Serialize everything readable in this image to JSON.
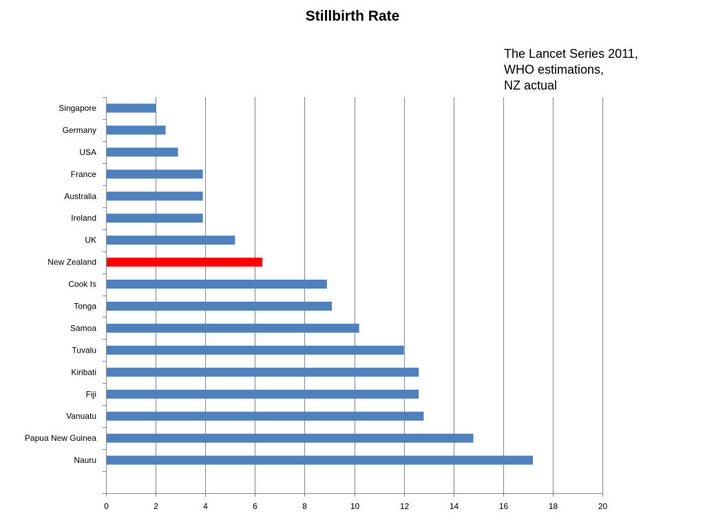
{
  "chart_data": {
    "type": "bar",
    "orientation": "horizontal",
    "title": "Stillbirth Rate",
    "annotation": [
      "The Lancet Series 2011,",
      "WHO estimations,",
      "NZ actual"
    ],
    "categories": [
      "Singapore",
      "Germany",
      "USA",
      "France",
      "Australia",
      "Ireland",
      "UK",
      "New Zealand",
      "Cook Is",
      "Tonga",
      "Samoa",
      "Tuvalu",
      "Kiribati",
      "Fiji",
      "Vanuatu",
      "Papua New Guinea",
      "Nauru"
    ],
    "values": [
      2.0,
      2.4,
      2.9,
      3.9,
      3.9,
      3.9,
      5.2,
      6.3,
      8.9,
      9.1,
      10.2,
      12.0,
      12.6,
      12.6,
      12.8,
      14.8,
      17.2
    ],
    "bar_colors": [
      "#4f81bd",
      "#4f81bd",
      "#4f81bd",
      "#4f81bd",
      "#4f81bd",
      "#4f81bd",
      "#4f81bd",
      "#ff0000",
      "#4f81bd",
      "#4f81bd",
      "#4f81bd",
      "#4f81bd",
      "#4f81bd",
      "#4f81bd",
      "#4f81bd",
      "#4f81bd",
      "#4f81bd"
    ],
    "xlim": [
      0,
      20
    ],
    "xticks": [
      0,
      2,
      4,
      6,
      8,
      10,
      12,
      14,
      16,
      18,
      20
    ],
    "grid": "vertical",
    "legend": "none",
    "highlight_color": "#ff0000",
    "bar_color": "#4f81bd"
  }
}
